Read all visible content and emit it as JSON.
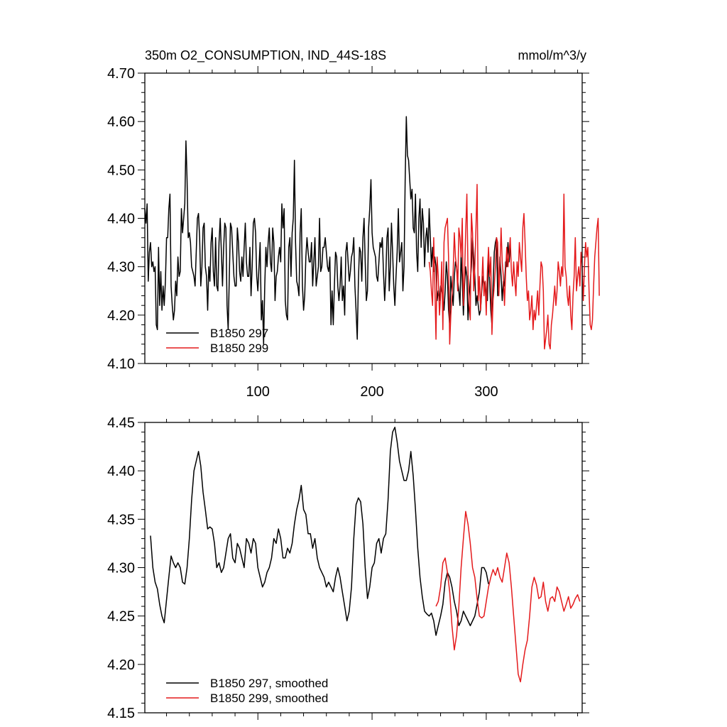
{
  "chart_data": [
    {
      "type": "line",
      "title": "350m O2_CONSUMPTION, IND_44S-18S",
      "units": "mmol/m^3/y",
      "xlim": [
        1,
        384
      ],
      "ylim": [
        4.1,
        4.7
      ],
      "x_ticks": [
        100,
        200,
        300
      ],
      "x_tick_labels": [
        "100",
        "200",
        "300"
      ],
      "y_ticks": [
        4.1,
        4.2,
        4.3,
        4.4,
        4.5,
        4.6,
        4.7
      ],
      "y_tick_labels": [
        "4.10",
        "4.20",
        "4.30",
        "4.40",
        "4.50",
        "4.60",
        "4.70"
      ],
      "legend": "bottom-left",
      "grid": false,
      "series": [
        {
          "name": "B1850 297",
          "color": "#000000",
          "x_start": 1,
          "values": [
            4.42,
            4.39,
            4.43,
            4.27,
            4.33,
            4.35,
            4.3,
            4.31,
            4.29,
            4.3,
            4.18,
            4.17,
            4.34,
            4.22,
            4.29,
            4.21,
            4.26,
            4.22,
            4.27,
            4.36,
            4.36,
            4.42,
            4.45,
            4.26,
            4.22,
            4.19,
            4.21,
            4.27,
            4.24,
            4.32,
            4.28,
            4.29,
            4.42,
            4.37,
            4.4,
            4.43,
            4.56,
            4.48,
            4.36,
            4.37,
            4.35,
            4.3,
            4.29,
            4.28,
            4.26,
            4.33,
            4.4,
            4.41,
            4.36,
            4.26,
            4.3,
            4.38,
            4.39,
            4.3,
            4.28,
            4.21,
            4.3,
            4.27,
            4.35,
            4.38,
            4.29,
            4.26,
            4.36,
            4.26,
            4.25,
            4.35,
            4.4,
            4.33,
            4.26,
            4.34,
            4.39,
            4.38,
            4.22,
            4.17,
            4.28,
            4.39,
            4.38,
            4.33,
            4.28,
            4.26,
            4.26,
            4.38,
            4.35,
            4.29,
            4.27,
            4.32,
            4.28,
            4.34,
            4.39,
            4.31,
            4.28,
            4.28,
            4.34,
            4.24,
            4.3,
            4.39,
            4.4,
            4.37,
            4.28,
            4.25,
            4.3,
            4.35,
            4.19,
            4.23,
            4.14,
            4.26,
            4.34,
            4.3,
            4.35,
            4.38,
            4.31,
            4.29,
            4.38,
            4.35,
            4.23,
            4.28,
            4.29,
            4.32,
            4.34,
            4.31,
            4.43,
            4.38,
            4.42,
            4.23,
            4.2,
            4.19,
            4.34,
            4.36,
            4.28,
            4.37,
            4.4,
            4.52,
            4.35,
            4.27,
            4.26,
            4.24,
            4.37,
            4.42,
            4.26,
            4.21,
            4.24,
            4.32,
            4.36,
            4.33,
            4.31,
            4.31,
            4.35,
            4.26,
            4.31,
            4.36,
            4.26,
            4.28,
            4.3,
            4.4,
            4.29,
            4.3,
            4.34,
            4.34,
            4.36,
            4.33,
            4.3,
            4.29,
            4.32,
            4.18,
            4.25,
            4.18,
            4.26,
            4.33,
            4.32,
            4.26,
            4.23,
            4.26,
            4.32,
            4.23,
            4.26,
            4.2,
            4.33,
            4.35,
            4.31,
            4.27,
            4.29,
            4.32,
            4.33,
            4.36,
            4.26,
            4.21,
            4.15,
            4.27,
            4.34,
            4.33,
            4.27,
            4.36,
            4.4,
            4.31,
            4.23,
            4.25,
            4.38,
            4.42,
            4.48,
            4.37,
            4.34,
            4.33,
            4.32,
            4.28,
            4.27,
            4.31,
            4.35,
            4.34,
            4.36,
            4.29,
            4.23,
            4.28,
            4.36,
            4.38,
            4.25,
            4.3,
            4.39,
            4.33,
            4.26,
            4.22,
            4.28,
            4.33,
            4.42,
            4.31,
            4.33,
            4.35,
            4.25,
            4.3,
            4.48,
            4.61,
            4.53,
            4.52,
            4.48,
            4.44,
            4.46,
            4.38,
            4.37,
            4.45,
            4.33,
            4.29,
            4.4,
            4.44,
            4.34,
            4.42,
            4.39,
            4.3,
            4.36,
            4.38,
            4.33,
            4.42,
            4.36,
            4.3,
            4.34,
            4.29,
            4.32,
            4.3,
            4.23,
            4.25,
            4.23,
            4.26,
            4.25,
            4.24,
            4.21,
            4.25,
            4.31,
            4.28,
            4.21,
            4.18,
            4.28,
            4.25,
            4.22,
            4.28,
            4.31,
            4.3,
            4.27,
            4.25,
            4.22,
            4.33,
            4.27,
            4.2,
            4.26,
            4.3,
            4.28,
            4.19,
            4.24,
            4.27,
            4.3,
            4.36,
            4.32,
            4.28,
            4.22,
            4.24,
            4.22,
            4.2,
            4.21,
            4.25,
            4.28,
            4.26,
            4.27,
            4.24,
            4.23,
            4.32,
            4.27,
            4.21,
            4.18,
            4.26,
            4.33,
            4.35,
            4.36,
            4.24,
            4.25,
            4.32,
            4.28,
            4.23,
            4.27,
            4.26,
            4.31,
            4.3,
            4.35,
            4.31,
            4.34
          ]
        },
        {
          "name": "B1850 299",
          "color": "#e41a1c",
          "x_start": 250,
          "values": [
            4.31,
            4.29,
            4.25,
            4.22,
            4.36,
            4.26,
            4.15,
            4.32,
            4.28,
            4.2,
            4.24,
            4.31,
            4.17,
            4.35,
            4.38,
            4.39,
            4.4,
            4.32,
            4.14,
            4.2,
            4.24,
            4.29,
            4.37,
            4.32,
            4.3,
            4.25,
            4.38,
            4.36,
            4.32,
            4.4,
            4.22,
            4.28,
            4.37,
            4.45,
            4.29,
            4.22,
            4.19,
            4.41,
            4.37,
            4.25,
            4.3,
            4.38,
            4.47,
            4.23,
            4.28,
            4.21,
            4.26,
            4.32,
            4.24,
            4.27,
            4.2,
            4.29,
            4.34,
            4.28,
            4.32,
            4.16,
            4.23,
            4.26,
            4.3,
            4.36,
            4.35,
            4.24,
            4.3,
            4.38,
            4.31,
            4.28,
            4.22,
            4.29,
            4.34,
            4.3,
            4.33,
            4.36,
            4.29,
            4.26,
            4.31,
            4.27,
            4.24,
            4.31,
            4.28,
            4.35,
            4.32,
            4.29,
            4.38,
            4.41,
            4.35,
            4.28,
            4.23,
            4.25,
            4.19,
            4.21,
            4.24,
            4.17,
            4.21,
            4.19,
            4.22,
            4.25,
            4.2,
            4.26,
            4.31,
            4.3,
            4.25,
            4.13,
            4.15,
            4.17,
            4.2,
            4.14,
            4.13,
            4.18,
            4.2,
            4.23,
            4.26,
            4.22,
            4.25,
            4.31,
            4.29,
            4.26,
            4.3,
            4.28,
            4.45,
            4.3,
            4.28,
            4.24,
            4.22,
            4.26,
            4.2,
            4.17,
            4.24,
            4.28,
            4.36,
            4.25,
            4.28,
            4.3,
            4.26,
            4.33,
            4.3,
            4.23,
            4.3,
            4.35,
            4.32,
            4.34,
            4.25,
            4.18,
            4.17,
            4.19,
            4.26,
            4.32,
            4.35,
            4.38,
            4.4,
            4.24
          ]
        }
      ]
    },
    {
      "type": "line",
      "xlim": [
        1,
        384
      ],
      "ylim": [
        4.15,
        4.45
      ],
      "x_ticks": [
        100,
        200,
        300
      ],
      "x_tick_labels": [],
      "y_ticks": [
        4.15,
        4.2,
        4.25,
        4.3,
        4.35,
        4.4,
        4.45
      ],
      "y_tick_labels": [
        "4.15",
        "4.20",
        "4.25",
        "4.30",
        "4.35",
        "4.40",
        "4.45"
      ],
      "legend": "bottom-left",
      "grid": false,
      "series": [
        {
          "name": "B1850 297, smoothed",
          "color": "#000000",
          "x": [
            6,
            8,
            10,
            12,
            14,
            16,
            18,
            20,
            22,
            24,
            26,
            28,
            30,
            32,
            34,
            36,
            38,
            40,
            42,
            44,
            46,
            48,
            50,
            52,
            54,
            56,
            58,
            60,
            62,
            64,
            66,
            68,
            70,
            72,
            74,
            76,
            78,
            80,
            82,
            84,
            86,
            88,
            90,
            92,
            94,
            96,
            98,
            100,
            102,
            104,
            106,
            108,
            110,
            112,
            114,
            116,
            118,
            120,
            122,
            124,
            126,
            128,
            130,
            132,
            134,
            136,
            138,
            140,
            142,
            144,
            146,
            148,
            150,
            152,
            154,
            156,
            158,
            160,
            162,
            164,
            166,
            168,
            170,
            172,
            174,
            176,
            178,
            180,
            182,
            184,
            186,
            188,
            190,
            192,
            194,
            196,
            198,
            200,
            202,
            204,
            206,
            208,
            210,
            212,
            214,
            216,
            218,
            220,
            222,
            224,
            226,
            228,
            230,
            232,
            234,
            236,
            238,
            240,
            242,
            244,
            246,
            248,
            250,
            252,
            254,
            256,
            258,
            260,
            262,
            264,
            266,
            268,
            270,
            272,
            274,
            276,
            278,
            280,
            282,
            284,
            286,
            288,
            290,
            292,
            294,
            296,
            298,
            300,
            302
          ],
          "values": [
            4.333,
            4.3,
            4.285,
            4.278,
            4.262,
            4.25,
            4.243,
            4.267,
            4.29,
            4.312,
            4.305,
            4.3,
            4.305,
            4.3,
            4.285,
            4.283,
            4.3,
            4.33,
            4.37,
            4.4,
            4.41,
            4.42,
            4.405,
            4.378,
            4.36,
            4.34,
            4.342,
            4.34,
            4.325,
            4.3,
            4.305,
            4.295,
            4.3,
            4.315,
            4.33,
            4.335,
            4.31,
            4.305,
            4.325,
            4.32,
            4.31,
            4.3,
            4.33,
            4.325,
            4.315,
            4.33,
            4.325,
            4.3,
            4.29,
            4.28,
            4.285,
            4.295,
            4.3,
            4.31,
            4.33,
            4.325,
            4.34,
            4.33,
            4.31,
            4.31,
            4.32,
            4.315,
            4.325,
            4.345,
            4.36,
            4.37,
            4.385,
            4.36,
            4.355,
            4.335,
            4.335,
            4.32,
            4.33,
            4.31,
            4.3,
            4.295,
            4.29,
            4.28,
            4.285,
            4.28,
            4.275,
            4.29,
            4.3,
            4.29,
            4.275,
            4.26,
            4.245,
            4.255,
            4.28,
            4.33,
            4.365,
            4.372,
            4.368,
            4.345,
            4.3,
            4.268,
            4.28,
            4.3,
            4.305,
            4.325,
            4.33,
            4.315,
            4.33,
            4.335,
            4.37,
            4.42,
            4.44,
            4.445,
            4.43,
            4.41,
            4.4,
            4.39,
            4.39,
            4.4,
            4.42,
            4.395,
            4.36,
            4.32,
            4.29,
            4.27,
            4.255,
            4.252,
            4.25,
            4.253,
            4.245,
            4.23,
            4.24,
            4.25,
            4.262,
            4.285,
            4.295,
            4.29,
            4.28,
            4.265,
            4.255,
            4.24,
            4.245,
            4.255,
            4.25,
            4.245,
            4.24,
            4.245,
            4.25,
            4.262,
            4.275,
            4.3,
            4.3,
            4.295,
            4.283
          ]
        },
        {
          "name": "B1850 299, smoothed",
          "color": "#e41a1c",
          "x": [
            256,
            258,
            260,
            262,
            264,
            266,
            268,
            270,
            272,
            274,
            276,
            278,
            280,
            282,
            284,
            286,
            288,
            290,
            292,
            294,
            296,
            298,
            300,
            302,
            304,
            306,
            308,
            310,
            312,
            314,
            316,
            318,
            320,
            322,
            324,
            326,
            328,
            330,
            332,
            334,
            336,
            338,
            340,
            342,
            344,
            346,
            348,
            350,
            352,
            354,
            356,
            358,
            360,
            362,
            364,
            366,
            368,
            370,
            372,
            374,
            376,
            378,
            380,
            382
          ],
          "values": [
            4.26,
            4.265,
            4.28,
            4.305,
            4.31,
            4.295,
            4.275,
            4.24,
            4.215,
            4.23,
            4.26,
            4.3,
            4.33,
            4.358,
            4.345,
            4.325,
            4.3,
            4.29,
            4.268,
            4.25,
            4.248,
            4.25,
            4.265,
            4.28,
            4.29,
            4.298,
            4.292,
            4.3,
            4.29,
            4.285,
            4.3,
            4.315,
            4.305,
            4.28,
            4.25,
            4.22,
            4.19,
            4.182,
            4.2,
            4.215,
            4.225,
            4.25,
            4.28,
            4.29,
            4.282,
            4.268,
            4.27,
            4.285,
            4.265,
            4.255,
            4.268,
            4.27,
            4.265,
            4.28,
            4.275,
            4.265,
            4.255,
            4.262,
            4.27,
            4.258,
            4.262,
            4.268,
            4.272,
            4.265
          ]
        }
      ]
    }
  ]
}
